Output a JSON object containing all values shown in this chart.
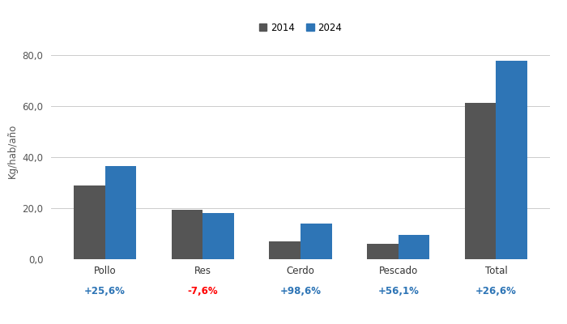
{
  "categories": [
    "Pollo",
    "Res",
    "Cerdo",
    "Pescado",
    "Total"
  ],
  "values_2014": [
    29.0,
    19.5,
    7.0,
    6.0,
    61.3
  ],
  "values_2024": [
    36.5,
    18.0,
    14.0,
    9.4,
    77.7
  ],
  "variations": [
    "+25,6%",
    "-7,6%",
    "+98,6%",
    "+56,1%",
    "+26,6%"
  ],
  "variation_colors": [
    "#2E75B6",
    "#FF0000",
    "#2E75B6",
    "#2E75B6",
    "#2E75B6"
  ],
  "color_2014": "#555555",
  "color_2024": "#2E75B6",
  "ylabel": "Kg/hab/año",
  "ylim": [
    0,
    85
  ],
  "yticks": [
    0.0,
    20.0,
    40.0,
    60.0,
    80.0
  ],
  "ytick_labels": [
    "0,0",
    "20,0",
    "40,0",
    "60,0",
    "80,0"
  ],
  "legend_labels": [
    "2014",
    "2024"
  ],
  "bar_width": 0.32,
  "background_color": "#FFFFFF",
  "grid_color": "#CCCCCC"
}
